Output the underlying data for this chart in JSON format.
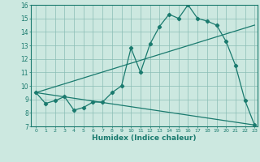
{
  "title": "",
  "xlabel": "Humidex (Indice chaleur)",
  "bg_color": "#cce8e0",
  "line_color": "#1a7a6e",
  "xlim": [
    -0.5,
    23.3
  ],
  "ylim": [
    7,
    16
  ],
  "yticks": [
    7,
    8,
    9,
    10,
    11,
    12,
    13,
    14,
    15,
    16
  ],
  "xticks": [
    0,
    1,
    2,
    3,
    4,
    5,
    6,
    7,
    8,
    9,
    10,
    11,
    12,
    13,
    14,
    15,
    16,
    17,
    18,
    19,
    20,
    21,
    22,
    23
  ],
  "series1_x": [
    0,
    1,
    2,
    3,
    4,
    5,
    6,
    7,
    8,
    9,
    10,
    11,
    12,
    13,
    14,
    15,
    16,
    17,
    18,
    19,
    20,
    21,
    22,
    23
  ],
  "series1_y": [
    9.5,
    8.7,
    8.9,
    9.2,
    8.2,
    8.4,
    8.8,
    8.8,
    9.5,
    10.0,
    12.8,
    11.0,
    13.1,
    14.4,
    15.3,
    15.0,
    16.0,
    15.0,
    14.8,
    14.5,
    13.3,
    11.5,
    8.9,
    7.1
  ],
  "series2_x": [
    0,
    23
  ],
  "series2_y": [
    9.5,
    14.5
  ],
  "series3_x": [
    0,
    23
  ],
  "series3_y": [
    9.5,
    7.1
  ]
}
